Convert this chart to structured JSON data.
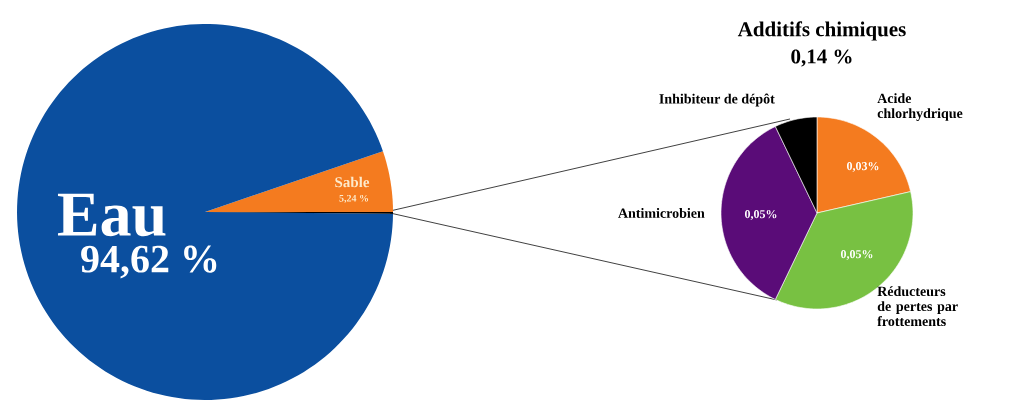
{
  "chart_data": [
    {
      "type": "pie",
      "categories": [
        "Sable",
        "Eau",
        null
      ],
      "values": [
        5.24,
        94.62,
        0.14
      ],
      "colors": [
        "#f47b1f",
        "#0b4f9f",
        "#000000"
      ],
      "value_labels": [
        "5,24 %",
        "94,62 %",
        null
      ]
    },
    {
      "type": "pie",
      "title": "Additifs chimiques",
      "subtitle": "0,14 %",
      "categories": [
        "Acide chlorhydrique",
        "Réducteurs de pertes par frottements",
        "Antimicrobien",
        "Inhibiteur de dépôt"
      ],
      "values": [
        0.03,
        0.05,
        0.05,
        0.01
      ],
      "colors": [
        "#f47b1f",
        "#78c142",
        "#5a0c78",
        "#000000"
      ],
      "value_labels": [
        "0,03%",
        "0,05%",
        "0,05%",
        null
      ]
    }
  ]
}
